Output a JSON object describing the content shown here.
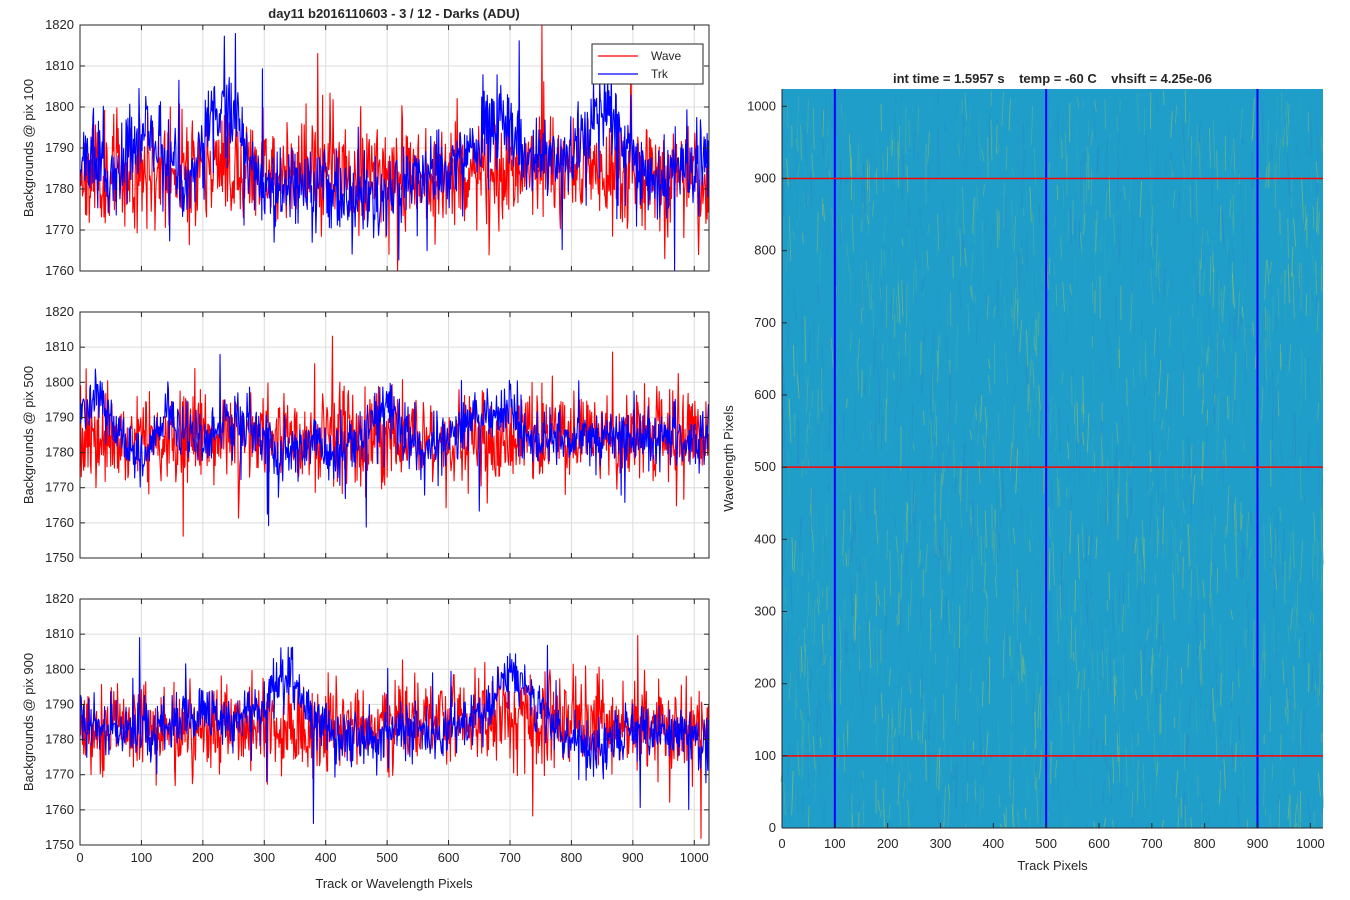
{
  "figure": {
    "title": "day11 b2016110603 - 3 / 12 - Darks (ADU)",
    "shared_xlabel": "Track or Wavelength Pixels"
  },
  "chart_data": [
    {
      "type": "line",
      "ylabel": "Backgrounds @ pix 100",
      "xlim": [
        0,
        1024
      ],
      "ylim": [
        1760,
        1820
      ],
      "x_ticks": [
        0,
        100,
        200,
        300,
        400,
        500,
        600,
        700,
        800,
        900,
        1000
      ],
      "y_ticks": [
        1760,
        1770,
        1780,
        1790,
        1800,
        1810,
        1820
      ],
      "grid": true,
      "legend": {
        "placement": "top-right",
        "entries": [
          "Wave",
          "Trk"
        ]
      },
      "series": [
        {
          "name": "Wave",
          "color": "#ff0000",
          "mean": 1784,
          "noise_sd": 6.5,
          "seed": 11,
          "segments": [
            [
              0,
              1784
            ],
            [
              250,
              1785
            ],
            [
              500,
              1783
            ],
            [
              750,
              1785
            ],
            [
              1023,
              1782
            ]
          ]
        },
        {
          "name": "Trk",
          "color": "#0000ff",
          "mean": 1785,
          "noise_sd": 5,
          "seed": 23,
          "segments": [
            [
              0,
              1786
            ],
            [
              60,
              1784
            ],
            [
              110,
              1795
            ],
            [
              150,
              1785
            ],
            [
              180,
              1782
            ],
            [
              210,
              1798
            ],
            [
              240,
              1800
            ],
            [
              270,
              1788
            ],
            [
              300,
              1780
            ],
            [
              360,
              1783
            ],
            [
              430,
              1778
            ],
            [
              480,
              1778
            ],
            [
              530,
              1781
            ],
            [
              600,
              1785
            ],
            [
              680,
              1795
            ],
            [
              730,
              1788
            ],
            [
              790,
              1788
            ],
            [
              820,
              1792
            ],
            [
              860,
              1801
            ],
            [
              890,
              1790
            ],
            [
              940,
              1780
            ],
            [
              990,
              1784
            ],
            [
              1023,
              1786
            ]
          ]
        }
      ]
    },
    {
      "type": "line",
      "ylabel": "Backgrounds @ pix 500",
      "xlim": [
        0,
        1024
      ],
      "ylim": [
        1750,
        1820
      ],
      "x_ticks": [
        0,
        100,
        200,
        300,
        400,
        500,
        600,
        700,
        800,
        900,
        1000
      ],
      "y_ticks": [
        1750,
        1760,
        1770,
        1780,
        1790,
        1800,
        1810,
        1820
      ],
      "grid": true,
      "series": [
        {
          "name": "Wave",
          "color": "#ff0000",
          "mean": 1784,
          "noise_sd": 6.5,
          "seed": 37,
          "segments": [
            [
              0,
              1783
            ],
            [
              300,
              1785
            ],
            [
              600,
              1784
            ],
            [
              1023,
              1784
            ]
          ]
        },
        {
          "name": "Trk",
          "color": "#0000ff",
          "mean": 1785,
          "noise_sd": 4,
          "seed": 41,
          "segments": [
            [
              0,
              1790
            ],
            [
              30,
              1797
            ],
            [
              60,
              1786
            ],
            [
              100,
              1778
            ],
            [
              140,
              1790
            ],
            [
              200,
              1782
            ],
            [
              240,
              1790
            ],
            [
              300,
              1784
            ],
            [
              330,
              1779
            ],
            [
              380,
              1784
            ],
            [
              420,
              1778
            ],
            [
              460,
              1786
            ],
            [
              500,
              1795
            ],
            [
              520,
              1786
            ],
            [
              560,
              1780
            ],
            [
              620,
              1787
            ],
            [
              700,
              1793
            ],
            [
              730,
              1783
            ],
            [
              800,
              1784
            ],
            [
              900,
              1784
            ],
            [
              1023,
              1784
            ]
          ]
        }
      ]
    },
    {
      "type": "line",
      "ylabel": "Backgrounds @ pix 900",
      "xlabel": "Track or Wavelength Pixels",
      "xlim": [
        0,
        1024
      ],
      "ylim": [
        1750,
        1820
      ],
      "x_ticks": [
        0,
        100,
        200,
        300,
        400,
        500,
        600,
        700,
        800,
        900,
        1000
      ],
      "y_ticks": [
        1750,
        1760,
        1770,
        1780,
        1790,
        1800,
        1810,
        1820
      ],
      "grid": true,
      "series": [
        {
          "name": "Wave",
          "color": "#ff0000",
          "mean": 1784,
          "noise_sd": 6.5,
          "seed": 53,
          "segments": [
            [
              0,
              1783
            ],
            [
              400,
              1784
            ],
            [
              700,
              1786
            ],
            [
              1023,
              1783
            ]
          ]
        },
        {
          "name": "Trk",
          "color": "#0000ff",
          "mean": 1785,
          "noise_sd": 4,
          "seed": 67,
          "segments": [
            [
              0,
              1785
            ],
            [
              100,
              1782
            ],
            [
              200,
              1786
            ],
            [
              250,
              1785
            ],
            [
              300,
              1790
            ],
            [
              340,
              1800
            ],
            [
              370,
              1786
            ],
            [
              420,
              1780
            ],
            [
              480,
              1782
            ],
            [
              550,
              1783
            ],
            [
              600,
              1781
            ],
            [
              660,
              1788
            ],
            [
              700,
              1800
            ],
            [
              740,
              1790
            ],
            [
              790,
              1780
            ],
            [
              850,
              1778
            ],
            [
              900,
              1783
            ],
            [
              960,
              1781
            ],
            [
              1023,
              1781
            ]
          ]
        }
      ]
    },
    {
      "type": "heatmap",
      "title": "int time = 1.5957 s    temp = -60 C    vhsift = 4.25e-06",
      "xlabel": "Track Pixels",
      "ylabel": "Wavelength Pixels",
      "xlim": [
        0,
        1024
      ],
      "ylim": [
        0,
        1024
      ],
      "x_ticks": [
        0,
        100,
        200,
        300,
        400,
        500,
        600,
        700,
        800,
        900,
        1000
      ],
      "y_ticks": [
        0,
        100,
        200,
        300,
        400,
        500,
        600,
        700,
        800,
        900,
        1000
      ],
      "colormap": {
        "low": "#2a80c8",
        "mid": "#22a6c4",
        "high": "#b9c84a"
      },
      "base_color": "#1f9ec9",
      "overlay_lines": [
        {
          "orientation": "vertical",
          "at": 100,
          "color": "#0000ff"
        },
        {
          "orientation": "vertical",
          "at": 500,
          "color": "#0000ff"
        },
        {
          "orientation": "vertical",
          "at": 900,
          "color": "#0000ff"
        },
        {
          "orientation": "horizontal",
          "at": 100,
          "color": "#ff0000"
        },
        {
          "orientation": "horizontal",
          "at": 500,
          "color": "#ff0000"
        },
        {
          "orientation": "horizontal",
          "at": 900,
          "color": "#ff0000"
        }
      ],
      "seed": 97
    }
  ]
}
